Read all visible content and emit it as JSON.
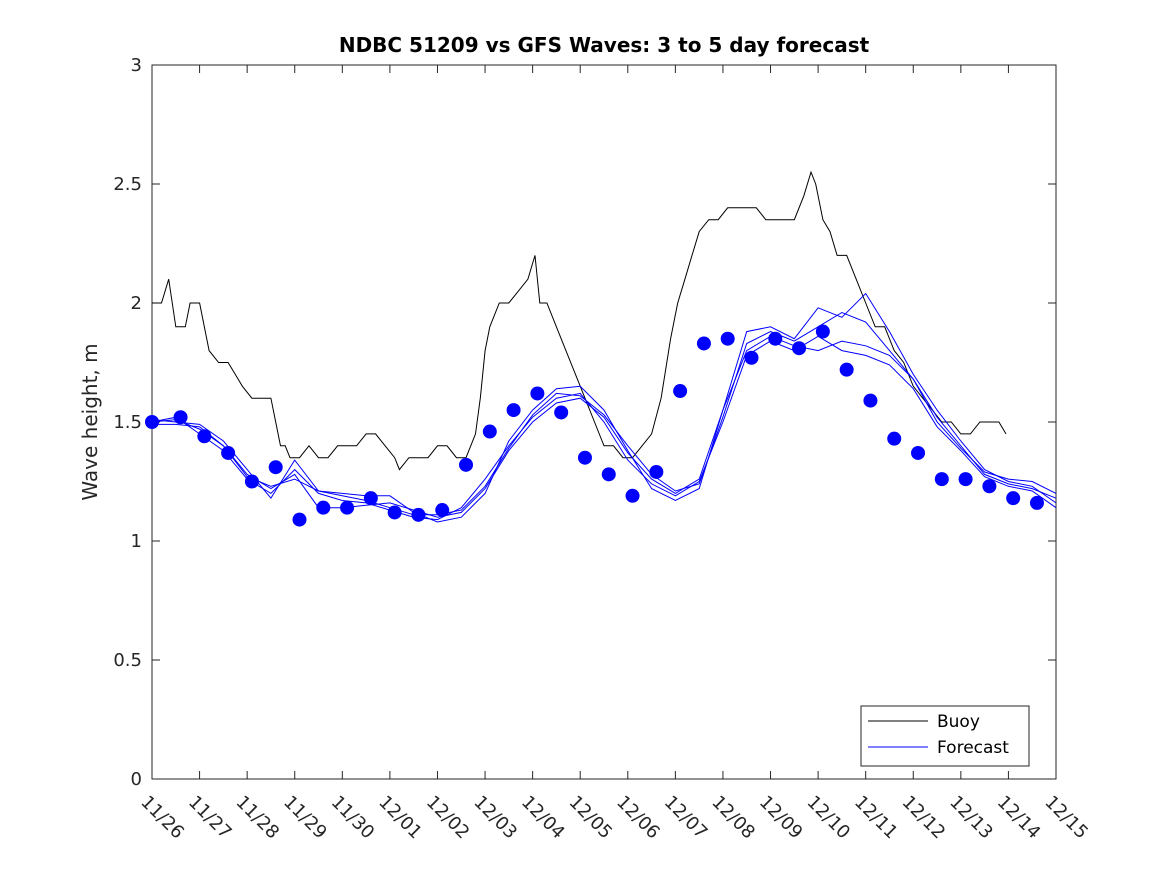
{
  "chart_data": {
    "type": "line",
    "title": "NDBC 51209 vs GFS Waves: 3 to 5 day forecast",
    "xlabel": "",
    "ylabel": "Wave height, m",
    "ylim": [
      0,
      3
    ],
    "yticks": [
      0,
      0.5,
      1,
      1.5,
      2,
      2.5,
      3
    ],
    "ytick_labels": [
      "0",
      "0.5",
      "1",
      "1.5",
      "2",
      "2.5",
      "3"
    ],
    "xlim_days": [
      0,
      19
    ],
    "x_unit": "days since 11/26",
    "xtick_labels": [
      "11/26",
      "11/27",
      "11/28",
      "11/29",
      "11/30",
      "12/01",
      "12/02",
      "12/03",
      "12/04",
      "12/05",
      "12/06",
      "12/07",
      "12/08",
      "12/09",
      "12/10",
      "12/11",
      "12/12",
      "12/13",
      "12/14",
      "12/15"
    ],
    "legend_position": "bottom-right",
    "series": [
      {
        "name": "Buoy",
        "color": "#000000",
        "x": [
          0,
          0.2,
          0.35,
          0.5,
          0.7,
          0.8,
          1.0,
          1.2,
          1.4,
          1.5,
          1.6,
          1.75,
          1.9,
          2.1,
          2.3,
          2.5,
          2.6,
          2.7,
          2.8,
          2.9,
          3.0,
          3.1,
          3.3,
          3.5,
          3.7,
          3.9,
          4.1,
          4.3,
          4.5,
          4.7,
          4.9,
          5.1,
          5.2,
          5.4,
          5.6,
          5.8,
          6.0,
          6.2,
          6.4,
          6.6,
          6.8,
          6.9,
          7.0,
          7.1,
          7.3,
          7.5,
          7.7,
          7.9,
          8.05,
          8.15,
          8.3,
          8.5,
          8.7,
          8.9,
          9.1,
          9.3,
          9.5,
          9.7,
          9.9,
          10.1,
          10.3,
          10.5,
          10.7,
          10.9,
          11.05,
          11.2,
          11.35,
          11.5,
          11.7,
          11.9,
          12.1,
          12.3,
          12.5,
          12.7,
          12.9,
          13.1,
          13.3,
          13.5,
          13.7,
          13.85,
          13.95,
          14.1,
          14.25,
          14.4,
          14.6,
          14.8,
          15.0,
          15.2,
          15.4,
          15.6,
          15.8,
          16.0,
          16.2,
          16.4,
          16.6,
          16.8,
          17.0,
          17.2,
          17.4,
          17.6,
          17.8,
          17.95
        ],
        "values": [
          2.0,
          2.0,
          2.1,
          1.9,
          1.9,
          2.0,
          2.0,
          1.8,
          1.75,
          1.75,
          1.75,
          1.7,
          1.65,
          1.6,
          1.6,
          1.6,
          1.5,
          1.4,
          1.4,
          1.35,
          1.35,
          1.35,
          1.4,
          1.35,
          1.35,
          1.4,
          1.4,
          1.4,
          1.45,
          1.45,
          1.4,
          1.35,
          1.3,
          1.35,
          1.35,
          1.35,
          1.4,
          1.4,
          1.35,
          1.35,
          1.45,
          1.6,
          1.8,
          1.9,
          2.0,
          2.0,
          2.05,
          2.1,
          2.2,
          2.0,
          2.0,
          1.9,
          1.8,
          1.7,
          1.6,
          1.5,
          1.4,
          1.4,
          1.35,
          1.35,
          1.4,
          1.45,
          1.6,
          1.85,
          2.0,
          2.1,
          2.2,
          2.3,
          2.35,
          2.35,
          2.4,
          2.4,
          2.4,
          2.4,
          2.35,
          2.35,
          2.35,
          2.35,
          2.45,
          2.55,
          2.5,
          2.35,
          2.3,
          2.2,
          2.2,
          2.1,
          2.0,
          1.9,
          1.9,
          1.8,
          1.75,
          1.65,
          1.6,
          1.55,
          1.5,
          1.5,
          1.45,
          1.45,
          1.5,
          1.5,
          1.5,
          1.45
        ]
      },
      {
        "name": "Forecast",
        "color": "#0000ff",
        "x": [
          0,
          0.5,
          1.0,
          1.5,
          2.0,
          2.5,
          3.0,
          3.5,
          4.0,
          4.5,
          5.0,
          5.5,
          6.0,
          6.5,
          7.0,
          7.5,
          8.0,
          8.5,
          9.0,
          9.5,
          10.0,
          10.5,
          11.0,
          11.5,
          12.0,
          12.5,
          13.0,
          13.5,
          14.0,
          14.5,
          15.0,
          15.5,
          16.0,
          16.5,
          17.0,
          17.5,
          18.0,
          18.5,
          19.0
        ],
        "values": [
          1.5,
          1.51,
          1.47,
          1.4,
          1.28,
          1.22,
          1.28,
          1.14,
          1.14,
          1.15,
          1.16,
          1.13,
          1.1,
          1.12,
          1.22,
          1.38,
          1.5,
          1.58,
          1.6,
          1.52,
          1.37,
          1.26,
          1.2,
          1.26,
          1.55,
          1.8,
          1.86,
          1.82,
          1.8,
          1.84,
          1.82,
          1.78,
          1.68,
          1.52,
          1.4,
          1.28,
          1.24,
          1.22,
          1.18
        ],
        "alt_runs": [
          [
            1.51,
            1.5,
            1.49,
            1.42,
            1.3,
            1.18,
            1.34,
            1.21,
            1.2,
            1.19,
            1.19,
            1.12,
            1.08,
            1.1,
            1.2,
            1.42,
            1.55,
            1.64,
            1.65,
            1.55,
            1.38,
            1.22,
            1.17,
            1.22,
            1.55,
            1.88,
            1.9,
            1.85,
            1.98,
            1.94,
            2.04,
            1.88,
            1.7,
            1.55,
            1.42,
            1.3,
            1.25,
            1.23,
            1.16
          ],
          [
            1.5,
            1.52,
            1.45,
            1.38,
            1.26,
            1.2,
            1.3,
            1.2,
            1.17,
            1.16,
            1.13,
            1.1,
            1.09,
            1.14,
            1.26,
            1.4,
            1.52,
            1.6,
            1.62,
            1.5,
            1.34,
            1.24,
            1.19,
            1.25,
            1.5,
            1.78,
            1.84,
            1.8,
            1.86,
            1.8,
            1.78,
            1.74,
            1.64,
            1.48,
            1.38,
            1.27,
            1.23,
            1.21,
            1.14
          ],
          [
            1.49,
            1.49,
            1.48,
            1.4,
            1.27,
            1.23,
            1.26,
            1.21,
            1.19,
            1.17,
            1.14,
            1.11,
            1.11,
            1.13,
            1.23,
            1.39,
            1.53,
            1.62,
            1.61,
            1.53,
            1.4,
            1.28,
            1.21,
            1.24,
            1.52,
            1.83,
            1.88,
            1.84,
            1.9,
            1.96,
            1.92,
            1.8,
            1.68,
            1.5,
            1.39,
            1.29,
            1.26,
            1.25,
            1.2
          ]
        ],
        "markers_x": [
          0,
          0.6,
          1.1,
          1.6,
          2.1,
          2.6,
          3.1,
          3.6,
          4.1,
          4.6,
          5.1,
          5.6,
          6.1,
          6.6,
          7.1,
          7.6,
          8.1,
          8.6,
          9.1,
          9.6,
          10.1,
          10.6,
          11.1,
          11.6,
          12.1,
          12.6,
          13.1,
          13.6,
          14.1,
          14.6,
          15.1,
          15.6,
          16.1,
          16.6,
          17.1,
          17.6,
          18.1,
          18.6
        ],
        "markers_values": [
          1.5,
          1.52,
          1.44,
          1.37,
          1.25,
          1.31,
          1.09,
          1.14,
          1.14,
          1.18,
          1.12,
          1.11,
          1.13,
          1.32,
          1.46,
          1.55,
          1.62,
          1.54,
          1.35,
          1.28,
          1.19,
          1.29,
          1.63,
          1.83,
          1.85,
          1.77,
          1.85,
          1.81,
          1.88,
          1.72,
          1.59,
          1.43,
          1.37,
          1.26,
          1.26,
          1.23,
          1.18,
          1.16
        ]
      }
    ]
  }
}
